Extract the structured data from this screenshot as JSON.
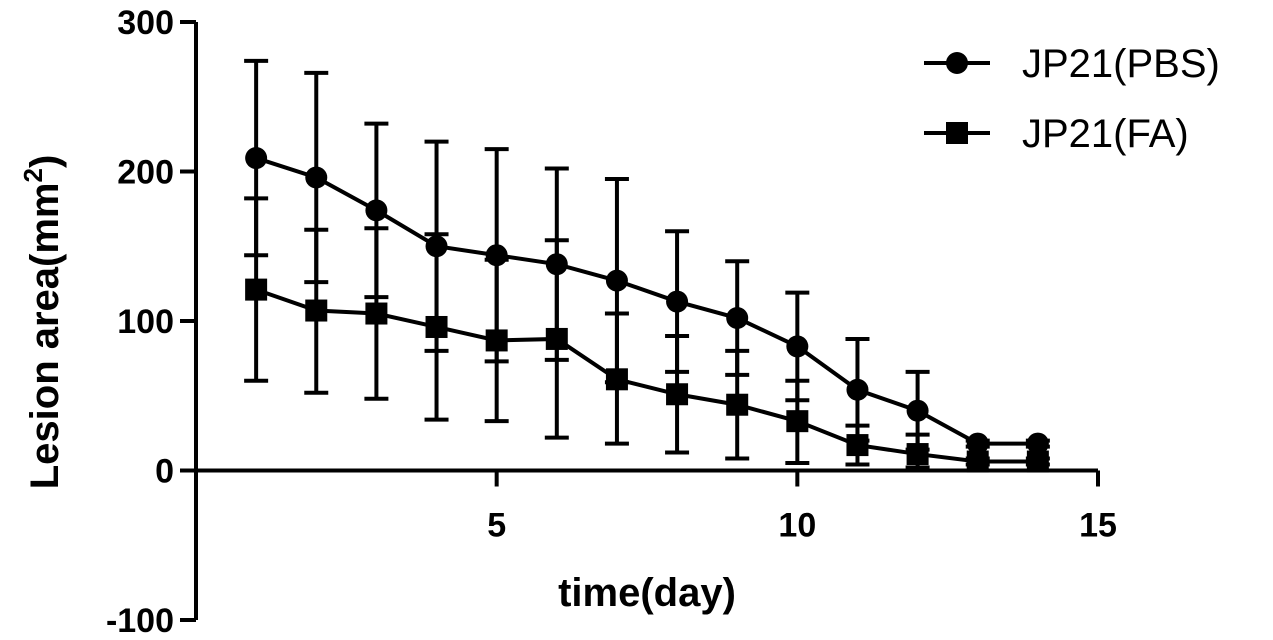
{
  "chart_data": {
    "type": "line",
    "title": "",
    "xlabel": "time(day)",
    "ylabel": "Lesion area(mm²)",
    "ylabel_main": "Lesion area(mm",
    "ylabel_sup": "2",
    "ylabel_close": ")",
    "xlim": [
      0,
      15
    ],
    "ylim": [
      -100,
      300
    ],
    "x_ticks": [
      5,
      10,
      15
    ],
    "x_tick_labels": [
      "5",
      "10",
      "15"
    ],
    "y_ticks": [
      -100,
      0,
      100,
      200,
      300
    ],
    "y_tick_labels": [
      "-100",
      "0",
      "100",
      "200",
      "300"
    ],
    "grid": false,
    "legend_position": "top-right",
    "x": [
      1,
      2,
      3,
      4,
      5,
      6,
      7,
      8,
      9,
      10,
      11,
      12,
      13,
      14
    ],
    "series": [
      {
        "name": "JP21(PBS)",
        "marker": "circle",
        "color": "#000000",
        "values": [
          209,
          196,
          174,
          150,
          144,
          138,
          127,
          113,
          102,
          83,
          54,
          40,
          18,
          18
        ],
        "err_upper": [
          274,
          266,
          232,
          220,
          215,
          202,
          195,
          160,
          140,
          119,
          88,
          66,
          20,
          20
        ],
        "err_lower": [
          144,
          126,
          116,
          80,
          73,
          74,
          59,
          66,
          64,
          47,
          20,
          14,
          16,
          16
        ]
      },
      {
        "name": "JP21(FA)",
        "marker": "square",
        "color": "#000000",
        "values": [
          121,
          107,
          105,
          96,
          87,
          88,
          61,
          51,
          44,
          33,
          17,
          11,
          6,
          6
        ],
        "err_upper": [
          182,
          161,
          162,
          158,
          141,
          154,
          105,
          90,
          80,
          60,
          30,
          24,
          8,
          8
        ],
        "err_lower": [
          60,
          52,
          48,
          34,
          33,
          22,
          18,
          12,
          8,
          5,
          4,
          2,
          4,
          4
        ]
      }
    ]
  }
}
